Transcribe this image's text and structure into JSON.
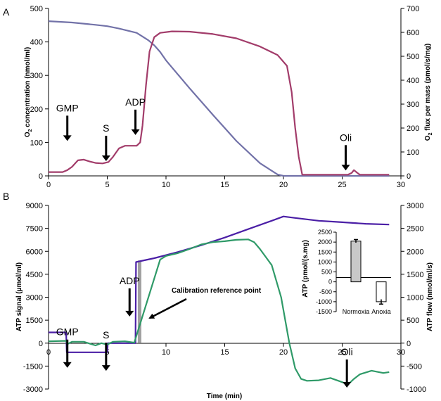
{
  "chart_data": [
    {
      "panel": "A",
      "type": "line",
      "xlabel": "",
      "xlim": [
        0,
        30
      ],
      "xticks": [
        "0",
        "5",
        "10",
        "15",
        "20",
        "25",
        "30"
      ],
      "ylabel_main": "O",
      "ylabel_sub": "2",
      "ylabel_rest": " concentration (nmol/ml)",
      "ylim": [
        0,
        500
      ],
      "yticks": [
        "0",
        "100",
        "200",
        "300",
        "400",
        "500"
      ],
      "y2label_main": "O",
      "y2label_sub": "2",
      "y2label_rest": " flux per mass (pmol/s/mg)",
      "y2lim": [
        0,
        700
      ],
      "y2ticks": [
        "0",
        "100",
        "200",
        "300",
        "400",
        "500",
        "600",
        "700"
      ],
      "series": [
        {
          "name": "O2 concentration",
          "axis": "left",
          "color": "#7272a8",
          "points": [
            [
              0,
              462
            ],
            [
              2,
              458
            ],
            [
              4,
              451
            ],
            [
              5,
              447
            ],
            [
              6,
              440
            ],
            [
              7.5,
              427
            ],
            [
              8.5,
              405
            ],
            [
              9,
              390
            ],
            [
              9.5,
              370
            ],
            [
              10,
              345
            ],
            [
              12,
              262
            ],
            [
              14,
              182
            ],
            [
              16,
              104
            ],
            [
              18,
              38
            ],
            [
              19.5,
              4
            ],
            [
              20,
              0
            ],
            [
              29,
              0
            ]
          ]
        },
        {
          "name": "O2 flux per mass",
          "axis": "right",
          "color": "#a23c6a",
          "points": [
            [
              0,
              16
            ],
            [
              1.2,
              16
            ],
            [
              1.6,
              24
            ],
            [
              2,
              38
            ],
            [
              2.5,
              65
            ],
            [
              3,
              68
            ],
            [
              3.5,
              60
            ],
            [
              4,
              54
            ],
            [
              4.6,
              52
            ],
            [
              5.1,
              58
            ],
            [
              5.5,
              80
            ],
            [
              6,
              115
            ],
            [
              6.5,
              126
            ],
            [
              7.5,
              126
            ],
            [
              7.8,
              140
            ],
            [
              8,
              210
            ],
            [
              8.3,
              380
            ],
            [
              8.6,
              520
            ],
            [
              9,
              580
            ],
            [
              9.5,
              598
            ],
            [
              10.5,
              604
            ],
            [
              12,
              603
            ],
            [
              14,
              593
            ],
            [
              16,
              575
            ],
            [
              18,
              541
            ],
            [
              19.5,
              505
            ],
            [
              20.3,
              460
            ],
            [
              20.7,
              350
            ],
            [
              21,
              200
            ],
            [
              21.3,
              80
            ],
            [
              21.6,
              5
            ],
            [
              25.5,
              5
            ],
            [
              25.8,
              12
            ],
            [
              26,
              24
            ],
            [
              26.3,
              12
            ],
            [
              26.5,
              5
            ],
            [
              29,
              5
            ]
          ]
        }
      ],
      "annotations": [
        {
          "label": "GMP",
          "x": 1.6,
          "y": 100
        },
        {
          "label": "S",
          "x": 4.9,
          "y": 40
        },
        {
          "label": "ADP",
          "x": 7.4,
          "y": 118
        },
        {
          "label": "Oli",
          "x": 25.3,
          "y": 12
        }
      ]
    },
    {
      "panel": "B",
      "type": "line",
      "xlabel": "Time (min)",
      "xlim": [
        0,
        30
      ],
      "xticks": [
        "0",
        "5",
        "10",
        "15",
        "20",
        "25",
        "30"
      ],
      "ylabel": "ATP signal (µmol/ml)",
      "ylim": [
        -3000,
        9000
      ],
      "yticks": [
        "-3000",
        "-1500",
        "0",
        "1500",
        "3000",
        "4500",
        "6000",
        "7500",
        "9000"
      ],
      "y2label": "ATP flow (nmol/ml/s)",
      "y2lim": [
        -1000,
        3000
      ],
      "y2ticks": [
        "-1000",
        "-500",
        "0",
        "500",
        "1000",
        "1500",
        "2000",
        "2500",
        "3000"
      ],
      "calibration_bar": {
        "x_start": 7.6,
        "x_end": 7.9,
        "y_top": 5400,
        "color": "#a0a0a0"
      },
      "calibration_label": "Calibration reference point",
      "series": [
        {
          "name": "ATP signal",
          "axis": "left",
          "color": "#4b1fa6",
          "points": [
            [
              0,
              700
            ],
            [
              1.5,
              700
            ],
            [
              1.55,
              -600
            ],
            [
              5,
              -600
            ],
            [
              5.05,
              0
            ],
            [
              7.4,
              0
            ],
            [
              7.45,
              5300
            ],
            [
              9,
              5550
            ],
            [
              11,
              5950
            ],
            [
              13,
              6400
            ],
            [
              15,
              6900
            ],
            [
              17,
              7450
            ],
            [
              19,
              8000
            ],
            [
              20,
              8280
            ],
            [
              21,
              8180
            ],
            [
              23,
              8000
            ],
            [
              25,
              7900
            ],
            [
              27,
              7800
            ],
            [
              29,
              7750
            ]
          ]
        },
        {
          "name": "ATP flow",
          "axis": "right",
          "color": "#2f9a68",
          "points": [
            [
              0,
              40
            ],
            [
              1.5,
              50
            ],
            [
              1.6,
              -20
            ],
            [
              2,
              30
            ],
            [
              3,
              30
            ],
            [
              3.5,
              -10
            ],
            [
              4,
              -50
            ],
            [
              4.5,
              0
            ],
            [
              5,
              -30
            ],
            [
              5.5,
              30
            ],
            [
              6.5,
              40
            ],
            [
              7.3,
              10
            ],
            [
              9.5,
              1820
            ],
            [
              10,
              1900
            ],
            [
              11,
              1960
            ],
            [
              12,
              2050
            ],
            [
              13,
              2150
            ],
            [
              14,
              2200
            ],
            [
              15,
              2220
            ],
            [
              16,
              2250
            ],
            [
              17,
              2260
            ],
            [
              17.5,
              2200
            ],
            [
              18,
              2050
            ],
            [
              19,
              1700
            ],
            [
              19.8,
              1000
            ],
            [
              20.5,
              0
            ],
            [
              21,
              -550
            ],
            [
              21.5,
              -780
            ],
            [
              22,
              -820
            ],
            [
              23,
              -810
            ],
            [
              24,
              -760
            ],
            [
              25,
              -850
            ],
            [
              25.5,
              -900
            ],
            [
              26,
              -780
            ],
            [
              26.5,
              -680
            ],
            [
              27.5,
              -600
            ],
            [
              28.5,
              -650
            ],
            [
              29,
              -630
            ]
          ]
        }
      ],
      "annotations": [
        {
          "label": "GMP",
          "x": 1.6,
          "y": -1700
        },
        {
          "label": "S",
          "x": 4.9,
          "y": -1900
        },
        {
          "label": "ADP",
          "x": 6.9,
          "y": 1650
        },
        {
          "label": "Oli",
          "x": 25.4,
          "y": -3000
        }
      ],
      "inset": {
        "type": "bar",
        "ylabel": "ATP (pmol/(s.mg)",
        "ylim": [
          -1500,
          2500
        ],
        "yticks": [
          "2500",
          "2000",
          "1500",
          "1000",
          "500",
          "0",
          "-500",
          "-1000",
          "-1500"
        ],
        "categories": [
          "Normoxia",
          "Anoxia"
        ],
        "values": [
          2050,
          -1000
        ],
        "errors": [
          80,
          120
        ],
        "colors": [
          "#c8c8c8",
          "#ffffff"
        ]
      }
    }
  ]
}
